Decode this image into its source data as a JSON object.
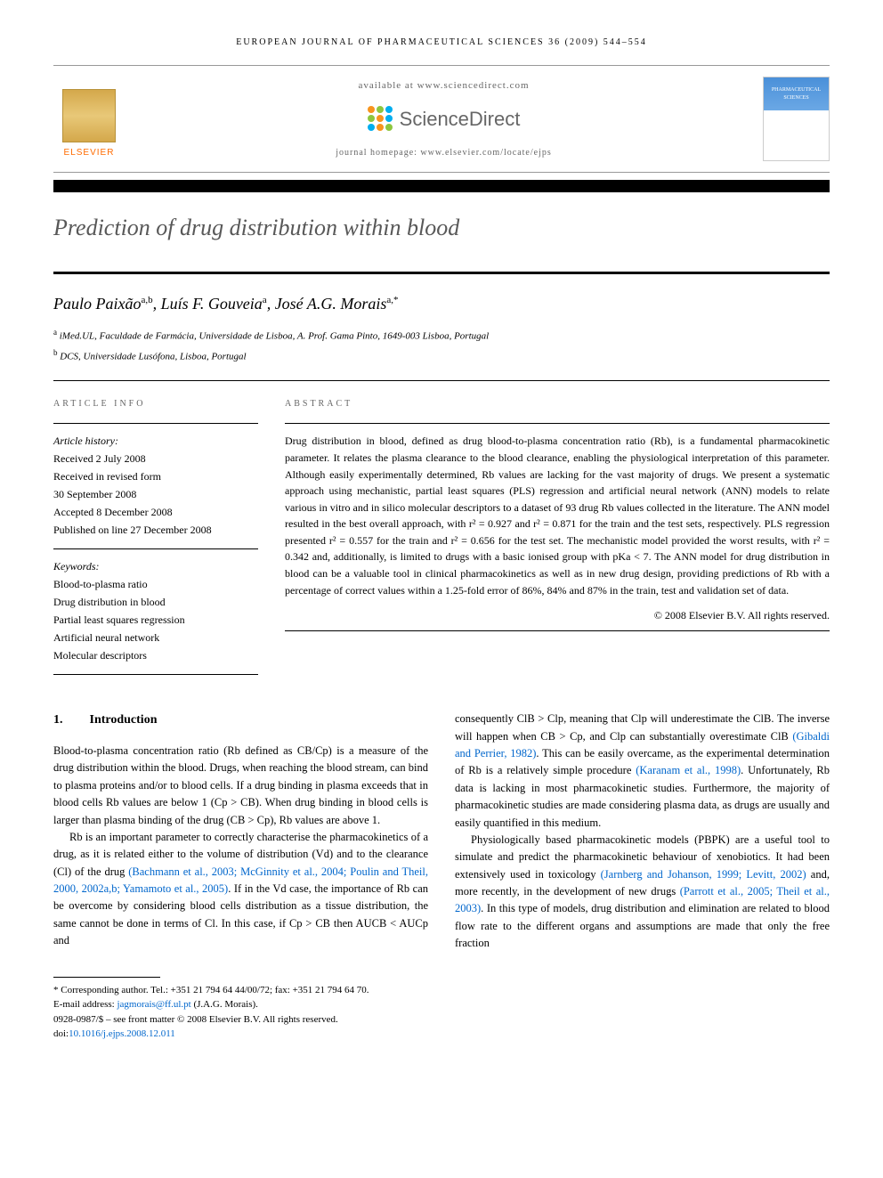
{
  "journal_header": "EUROPEAN JOURNAL OF PHARMACEUTICAL SCIENCES 36 (2009) 544–554",
  "banner": {
    "elsevier": "ELSEVIER",
    "available": "available at www.sciencedirect.com",
    "sciencedirect": "ScienceDirect",
    "homepage": "journal homepage: www.elsevier.com/locate/ejps",
    "cover_title": "PHARMACEUTICAL SCIENCES",
    "sd_dot_colors": [
      "#f7941e",
      "#8dc63f",
      "#00aeef",
      "#8dc63f",
      "#f7941e",
      "#00aeef",
      "#00aeef",
      "#f7941e",
      "#8dc63f"
    ]
  },
  "title": "Prediction of drug distribution within blood",
  "authors_html": "Paulo Paixão<sup>a,b</sup>, Luís F. Gouveia<sup>a</sup>, José A.G. Morais<sup>a,*</sup>",
  "affiliations": [
    {
      "sup": "a",
      "text": "iMed.UL, Faculdade de Farmácia, Universidade de Lisboa, A. Prof. Gama Pinto, 1649-003 Lisboa, Portugal"
    },
    {
      "sup": "b",
      "text": "DCS, Universidade Lusófona, Lisboa, Portugal"
    }
  ],
  "info": {
    "label": "ARTICLE INFO",
    "history_label": "Article history:",
    "history": [
      "Received 2 July 2008",
      "Received in revised form",
      "30 September 2008",
      "Accepted 8 December 2008",
      "Published on line 27 December 2008"
    ],
    "keywords_label": "Keywords:",
    "keywords": [
      "Blood-to-plasma ratio",
      "Drug distribution in blood",
      "Partial least squares regression",
      "Artificial neural network",
      "Molecular descriptors"
    ]
  },
  "abstract": {
    "label": "ABSTRACT",
    "text": "Drug distribution in blood, defined as drug blood-to-plasma concentration ratio (Rb), is a fundamental pharmacokinetic parameter. It relates the plasma clearance to the blood clearance, enabling the physiological interpretation of this parameter. Although easily experimentally determined, Rb values are lacking for the vast majority of drugs. We present a systematic approach using mechanistic, partial least squares (PLS) regression and artificial neural network (ANN) models to relate various in vitro and in silico molecular descriptors to a dataset of 93 drug Rb values collected in the literature. The ANN model resulted in the best overall approach, with r² = 0.927 and r² = 0.871 for the train and the test sets, respectively. PLS regression presented r² = 0.557 for the train and r² = 0.656 for the test set. The mechanistic model provided the worst results, with r² = 0.342 and, additionally, is limited to drugs with a basic ionised group with pKa < 7. The ANN model for drug distribution in blood can be a valuable tool in clinical pharmacokinetics as well as in new drug design, providing predictions of Rb with a percentage of correct values within a 1.25-fold error of 86%, 84% and 87% in the train, test and validation set of data.",
    "copyright": "© 2008 Elsevier B.V. All rights reserved."
  },
  "body": {
    "sec_num": "1.",
    "sec_title": "Introduction",
    "col1_p1": "Blood-to-plasma concentration ratio (Rb defined as CB/Cp) is a measure of the drug distribution within the blood. Drugs, when reaching the blood stream, can bind to plasma proteins and/or to blood cells. If a drug binding in plasma exceeds that in blood cells Rb values are below 1 (Cp > CB). When drug binding in blood cells is larger than plasma binding of the drug (CB > Cp), Rb values are above 1.",
    "col1_p2_pre": "Rb is an important parameter to correctly characterise the pharmacokinetics of a drug, as it is related either to the volume of distribution (Vd) and to the clearance (Cl) of the drug ",
    "col1_p2_ref": "(Bachmann et al., 2003; McGinnity et al., 2004; Poulin and Theil, 2000, 2002a,b; Yamamoto et al., 2005)",
    "col1_p2_post": ". If in the Vd case, the importance of Rb can be overcome by considering blood cells distribution as a tissue distribution, the same cannot be done in terms of Cl. In this case, if Cp > CB then AUCB < AUCp and",
    "col2_p1_a": "consequently ClB > Clp, meaning that Clp will underestimate the ClB. The inverse will happen when CB > Cp, and Clp can substantially overestimate ClB ",
    "col2_p1_ref1": "(Gibaldi and Perrier, 1982)",
    "col2_p1_b": ". This can be easily overcame, as the experimental determination of Rb is a relatively simple procedure ",
    "col2_p1_ref2": "(Karanam et al., 1998)",
    "col2_p1_c": ". Unfortunately, Rb data is lacking in most pharmacokinetic studies. Furthermore, the majority of pharmacokinetic studies are made considering plasma data, as drugs are usually and easily quantified in this medium.",
    "col2_p2_a": "Physiologically based pharmacokinetic models (PBPK) are a useful tool to simulate and predict the pharmacokinetic behaviour of xenobiotics. It had been extensively used in toxicology ",
    "col2_p2_ref1": "(Jarnberg and Johanson, 1999; Levitt, 2002)",
    "col2_p2_b": " and, more recently, in the development of new drugs ",
    "col2_p2_ref2": "(Parrott et al., 2005; Theil et al., 2003)",
    "col2_p2_c": ". In this type of models, drug distribution and elimination are related to blood flow rate to the different organs and assumptions are made that only the free fraction"
  },
  "footer": {
    "corresp": "* Corresponding author. Tel.: +351 21 794 64 44/00/72; fax: +351 21 794 64 70.",
    "email_label": "E-mail address: ",
    "email": "jagmorais@ff.ul.pt",
    "email_post": " (J.A.G. Morais).",
    "issn": "0928-0987/$ – see front matter © 2008 Elsevier B.V. All rights reserved.",
    "doi_label": "doi:",
    "doi": "10.1016/j.ejps.2008.12.011"
  },
  "colors": {
    "title_gray": "#585858",
    "link_blue": "#0066cc",
    "elsevier_orange": "#ff6b00",
    "cover_blue": "#4a90d9"
  }
}
